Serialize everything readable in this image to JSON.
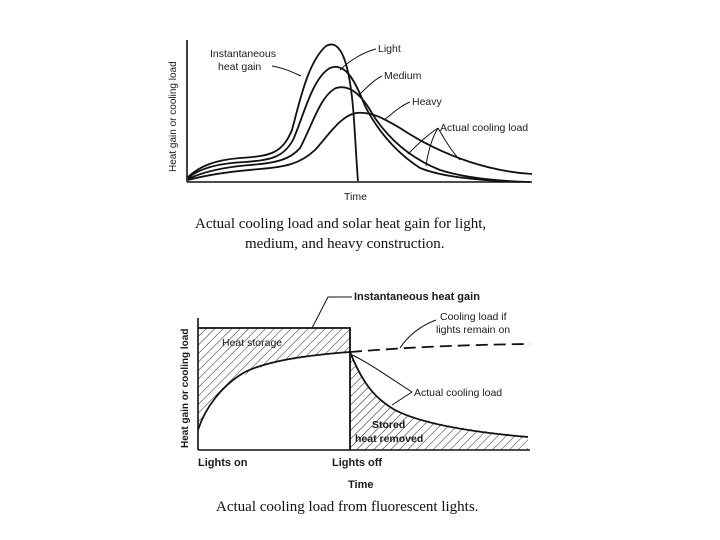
{
  "figure1": {
    "y_axis_label": "Heat gain or cooling load",
    "x_axis_label": "Time",
    "label_instantaneous_line1": "Instantaneous",
    "label_instantaneous_line2": "heat gain",
    "label_light": "Light",
    "label_medium": "Medium",
    "label_heavy": "Heavy",
    "label_actual_cooling": "Actual cooling load",
    "caption_line1": "Actual cooling load and solar heat gain for light,",
    "caption_line2": "medium, and heavy construction."
  },
  "figure2": {
    "y_axis_label": "Heat gain or cooling load",
    "x_axis_label": "Time",
    "label_instantaneous": "Instantaneous heat gain",
    "label_cooling_if_line1": "Cooling load if",
    "label_cooling_if_line2": "lights remain on",
    "label_heat_storage": "Heat storage",
    "label_actual_cooling": "Actual cooling load",
    "label_stored_line1": "Stored",
    "label_stored_line2": "heat removed",
    "label_lights_on": "Lights on",
    "label_lights_off": "Lights off",
    "caption": "Actual cooling load from fluorescent lights."
  }
}
